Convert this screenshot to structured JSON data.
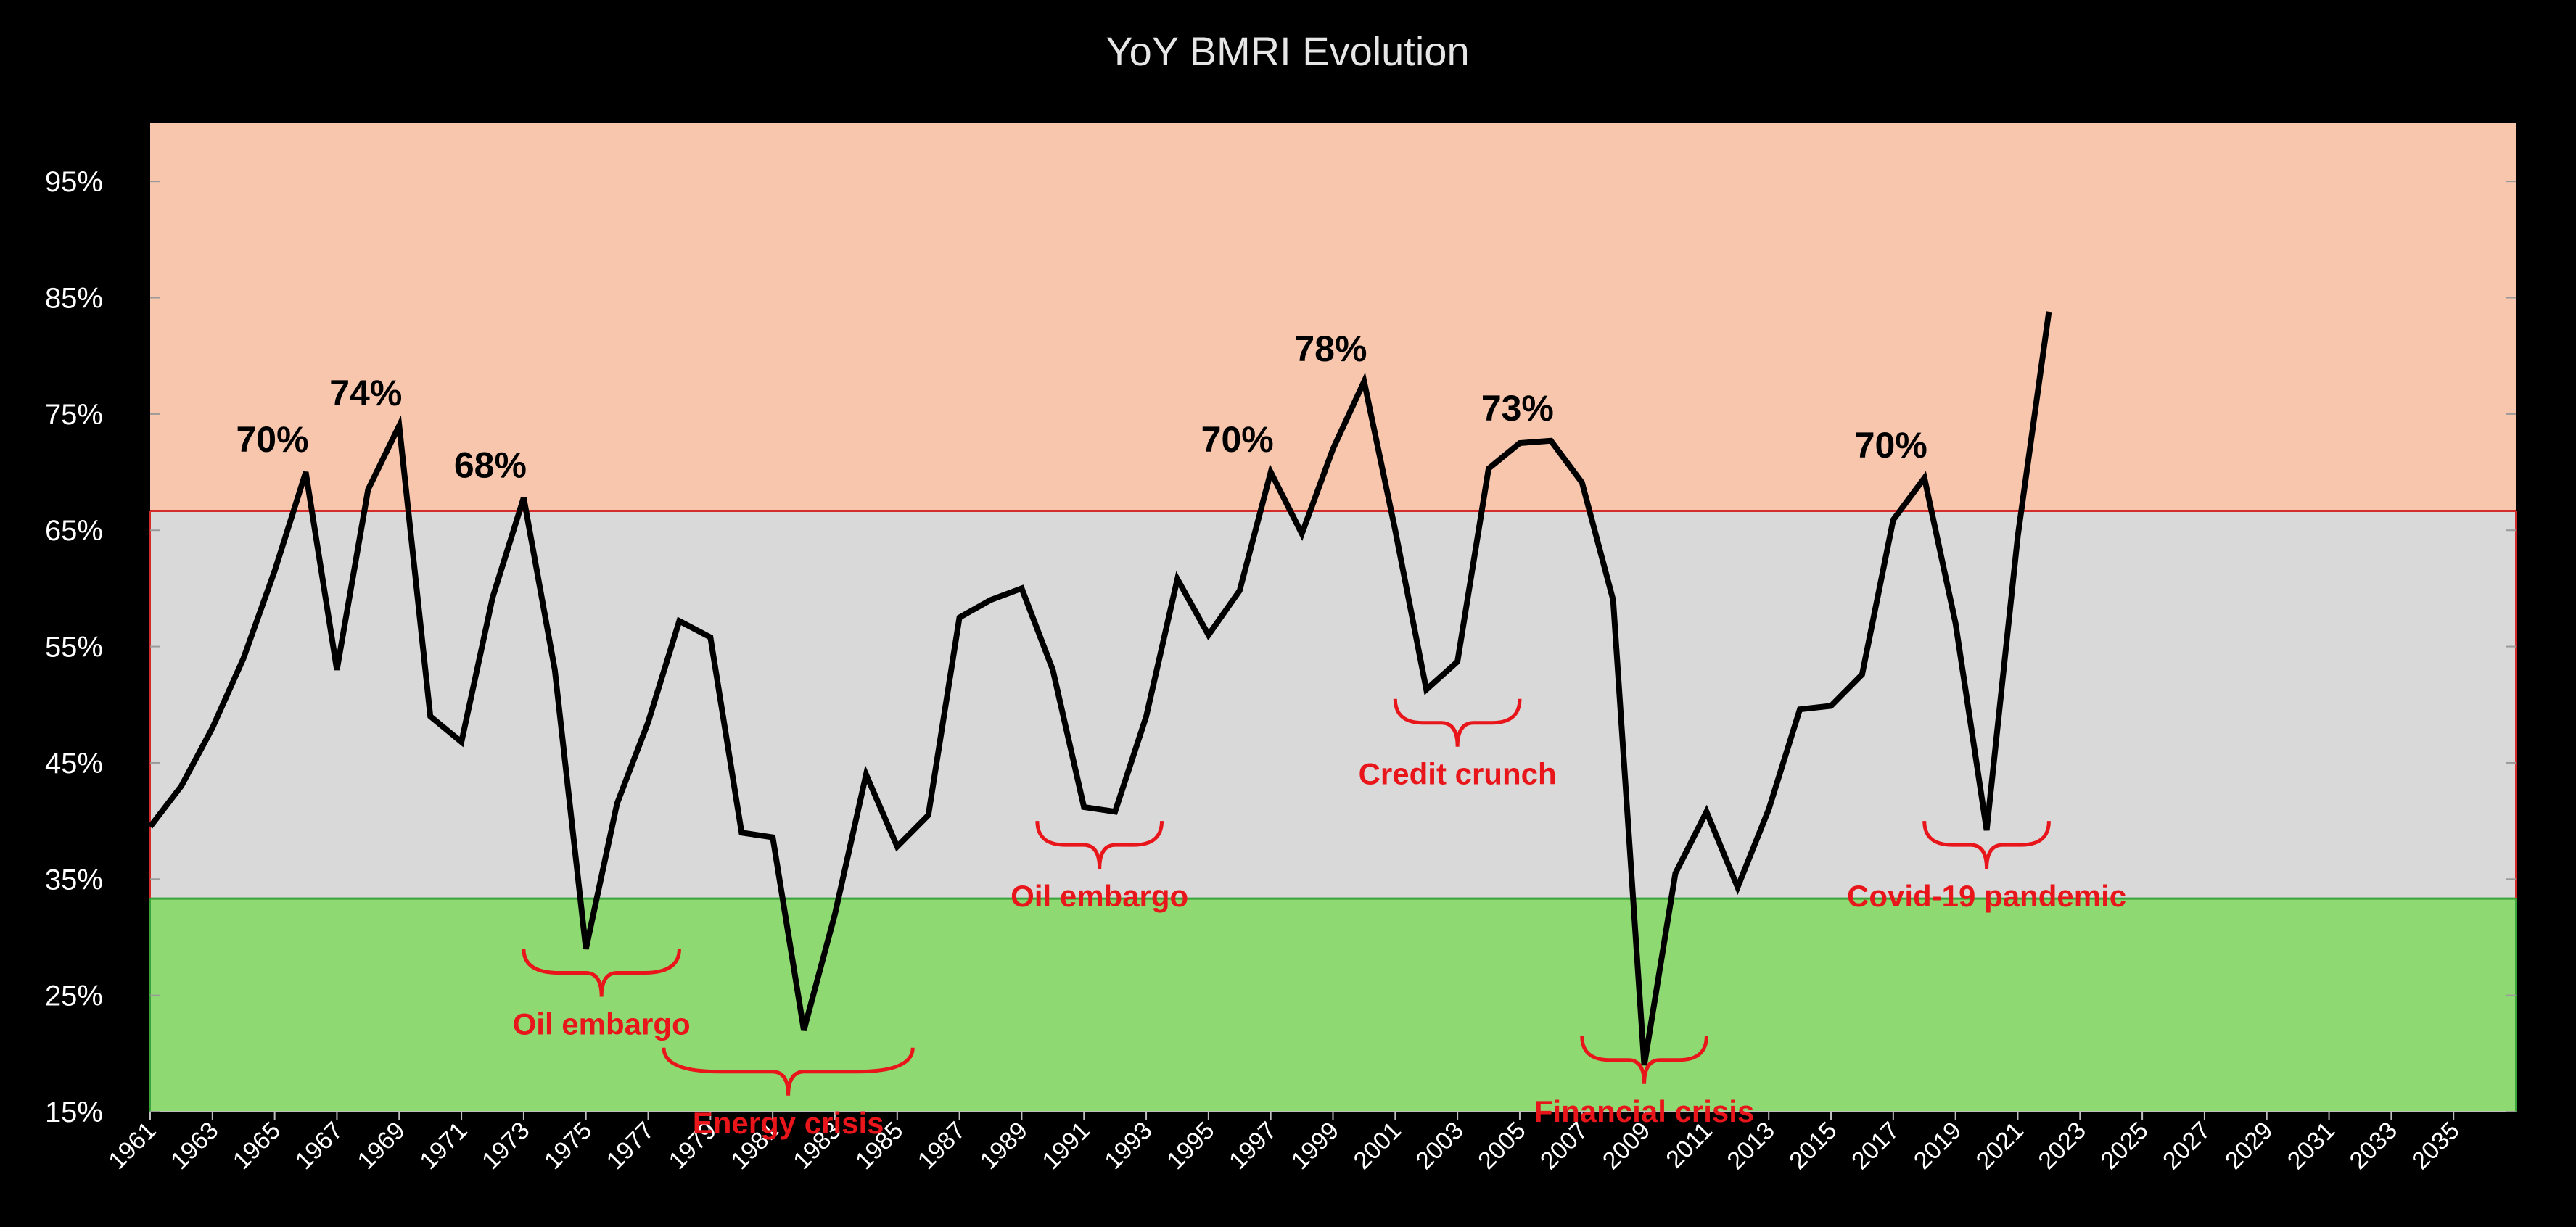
{
  "chart_data": {
    "type": "line",
    "title": "YoY BMRI Evolution",
    "xlabel": "",
    "ylabel": "",
    "ylim": [
      0.15,
      1.0
    ],
    "xlim": [
      1961,
      2037
    ],
    "y_ticks": [
      "15%",
      "25%",
      "35%",
      "45%",
      "55%",
      "65%",
      "75%",
      "85%",
      "95%"
    ],
    "x_ticks": [
      "1961",
      "1963",
      "1965",
      "1967",
      "1969",
      "1971",
      "1973",
      "1975",
      "1977",
      "1979",
      "1981",
      "1983",
      "1985",
      "1987",
      "1989",
      "1991",
      "1993",
      "1995",
      "1997",
      "1999",
      "2001",
      "2003",
      "2005",
      "2007",
      "2009",
      "2011",
      "2013",
      "2015",
      "2017",
      "2019",
      "2021",
      "2023",
      "2025",
      "2027",
      "2029",
      "2031",
      "2033",
      "2035"
    ],
    "grid": false,
    "legend": "none",
    "colors": {
      "background": "#000000",
      "line": "#000000",
      "upper_band": "#f7c6ad",
      "middle_band": "#d9d9d9",
      "lower_band": "#8fd973",
      "upper_border": "#d42b2b",
      "lower_border": "#3aa33a",
      "event_text": "#e8161b"
    },
    "bands": [
      {
        "from": 0.6667,
        "to": 1.0,
        "color": "upper_band"
      },
      {
        "from": 0.3333,
        "to": 0.6667,
        "color": "middle_band"
      },
      {
        "from": 0.15,
        "to": 0.3333,
        "color": "lower_band"
      }
    ],
    "series": [
      {
        "x": [
          1961,
          1962,
          1963,
          1964,
          1965,
          1966,
          1967,
          1968,
          1969,
          1970,
          1971,
          1972,
          1973,
          1974,
          1975,
          1976,
          1977,
          1978,
          1979,
          1980,
          1981,
          1982,
          1983,
          1984,
          1985,
          1986,
          1987,
          1988,
          1989,
          1990,
          1991,
          1992,
          1993,
          1994,
          1995,
          1996,
          1997,
          1998,
          1999,
          2000,
          2001,
          2002,
          2003,
          2004,
          2005,
          2006,
          2007,
          2008,
          2009,
          2010,
          2011,
          2012,
          2013,
          2014,
          2015,
          2016,
          2017,
          2018,
          2019,
          2020,
          2021,
          2022
        ],
        "y": [
          0.395,
          0.43,
          0.48,
          0.54,
          0.615,
          0.7,
          0.53,
          0.685,
          0.74,
          0.49,
          0.468,
          0.592,
          0.678,
          0.53,
          0.29,
          0.415,
          0.485,
          0.572,
          0.558,
          0.39,
          0.386,
          0.22,
          0.32,
          0.44,
          0.378,
          0.405,
          0.575,
          0.59,
          0.6,
          0.53,
          0.412,
          0.408,
          0.49,
          0.608,
          0.56,
          0.598,
          0.7,
          0.647,
          0.72,
          0.778,
          0.65,
          0.513,
          0.537,
          0.703,
          0.725,
          0.727,
          0.691,
          0.59,
          0.19,
          0.355,
          0.408,
          0.343,
          0.41,
          0.496,
          0.499,
          0.526,
          0.659,
          0.695,
          0.57,
          0.392,
          0.645,
          0.838
        ]
      }
    ],
    "annotations": [
      {
        "text": "70%",
        "x": 1966,
        "y": 0.7
      },
      {
        "text": "74%",
        "x": 1969,
        "y": 0.74
      },
      {
        "text": "68%",
        "x": 1973,
        "y": 0.678
      },
      {
        "text": "70%",
        "x": 1997,
        "y": 0.7
      },
      {
        "text": "78%",
        "x": 2000,
        "y": 0.778
      },
      {
        "text": "73%",
        "x": 2006,
        "y": 0.727
      },
      {
        "text": "70%",
        "x": 2018,
        "y": 0.695
      }
    ],
    "events": [
      {
        "label": "Oil embargo",
        "x_from": 1973,
        "x_to": 1978,
        "y": 0.29
      },
      {
        "label": "Energy crisis",
        "x_from": 1977.5,
        "x_to": 1985.5,
        "y": 0.205
      },
      {
        "label": "Oil embargo",
        "x_from": 1989.5,
        "x_to": 1993.5,
        "y": 0.4
      },
      {
        "label": "Credit crunch",
        "x_from": 2001,
        "x_to": 2005,
        "y": 0.505
      },
      {
        "label": "Financial crisis",
        "x_from": 2007,
        "x_to": 2011,
        "y": 0.215
      },
      {
        "label": "Covid-19 pandemic",
        "x_from": 2018,
        "x_to": 2022,
        "y": 0.4
      }
    ]
  }
}
